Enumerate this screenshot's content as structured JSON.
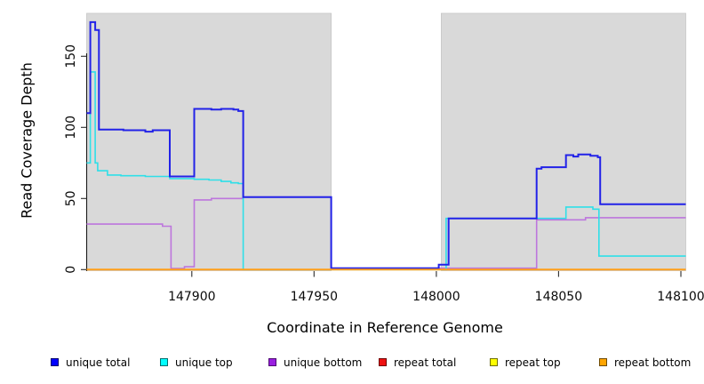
{
  "chart_data": {
    "type": "line",
    "title": "",
    "xlabel": "Coordinate in Reference Genome",
    "ylabel": "Read Coverage Depth",
    "xlim": [
      147857,
      148102
    ],
    "ylim": [
      0,
      180
    ],
    "x_ticks": [
      147900,
      147950,
      148000,
      148050,
      148100
    ],
    "y_ticks": [
      0,
      50,
      100,
      150
    ],
    "grid": false,
    "legend_position": "bottom",
    "plot_bg": "#d9d9d9",
    "plot_bg_border": "#c6c6c6",
    "no_data_gap_x": [
      147957,
      148002
    ],
    "data_regions_x": [
      [
        147857,
        147957
      ],
      [
        148002,
        148102
      ]
    ],
    "series": [
      {
        "name": "unique total",
        "line_color": "#2222e8",
        "legend_fill": "#0000ff",
        "legend_border": "#00006e",
        "line_width": 2,
        "points": [
          [
            147857,
            110
          ],
          [
            147858.5,
            174
          ],
          [
            147860.5,
            168.5
          ],
          [
            147862,
            98.5
          ],
          [
            147872,
            98
          ],
          [
            147881,
            97
          ],
          [
            147884,
            98
          ],
          [
            147891,
            65.5
          ],
          [
            147901,
            113
          ],
          [
            147908,
            112.5
          ],
          [
            147912,
            113
          ],
          [
            147917,
            112.5
          ],
          [
            147919,
            111.5
          ],
          [
            147921,
            51
          ],
          [
            147957,
            1
          ],
          [
            148001,
            3.5
          ],
          [
            148005,
            36
          ],
          [
            148041,
            71
          ],
          [
            148043,
            72
          ],
          [
            148053,
            80.5
          ],
          [
            148056,
            79.5
          ],
          [
            148058,
            81
          ],
          [
            148063,
            80
          ],
          [
            148066,
            79
          ],
          [
            148067,
            46
          ],
          [
            148102,
            46
          ]
        ]
      },
      {
        "name": "unique top",
        "line_color": "#2fdfe8",
        "legend_fill": "#00ffff",
        "legend_border": "#006e6e",
        "line_width": 1.6,
        "points": [
          [
            147857,
            75
          ],
          [
            147858.5,
            139
          ],
          [
            147860.5,
            75
          ],
          [
            147861.5,
            69.5
          ],
          [
            147865.5,
            66.5
          ],
          [
            147871,
            66
          ],
          [
            147881,
            65.5
          ],
          [
            147891,
            64
          ],
          [
            147901,
            63.5
          ],
          [
            147907,
            63
          ],
          [
            147912,
            62
          ],
          [
            147916,
            61
          ],
          [
            147919,
            60.5
          ],
          [
            147921,
            0
          ],
          [
            148004,
            36
          ],
          [
            148053,
            44
          ],
          [
            148064,
            42.5
          ],
          [
            148066.5,
            9.5
          ],
          [
            148102,
            9.5
          ]
        ]
      },
      {
        "name": "unique bottom",
        "line_color": "#bd76dd",
        "legend_fill": "#9a1fe0",
        "legend_border": "#4d0a73",
        "line_width": 1.6,
        "points": [
          [
            147857,
            32
          ],
          [
            147888,
            30.5
          ],
          [
            147891.5,
            0.8
          ],
          [
            147897,
            2
          ],
          [
            147901,
            49
          ],
          [
            147908,
            50
          ],
          [
            147921,
            51
          ],
          [
            147957,
            1
          ],
          [
            148041,
            35
          ],
          [
            148061,
            36.5
          ],
          [
            148102,
            36.5
          ]
        ]
      },
      {
        "name": "repeat total",
        "line_color": "#d42a2a",
        "legend_fill": "#ee1111",
        "legend_border": "#6e0000",
        "line_width": 1.4,
        "points": [
          [
            147857,
            0
          ],
          [
            148102,
            0
          ]
        ]
      },
      {
        "name": "repeat top",
        "line_color": "#f0f000",
        "legend_fill": "#ffff00",
        "legend_border": "#6e6e00",
        "line_width": 1.4,
        "points": [
          [
            147857,
            0
          ],
          [
            148102,
            0
          ]
        ]
      },
      {
        "name": "repeat bottom",
        "line_color": "#ff9f1a",
        "legend_fill": "#ffa500",
        "legend_border": "#6e4a00",
        "line_width": 2,
        "points": [
          [
            147857,
            0
          ],
          [
            148102,
            0
          ]
        ]
      }
    ]
  }
}
